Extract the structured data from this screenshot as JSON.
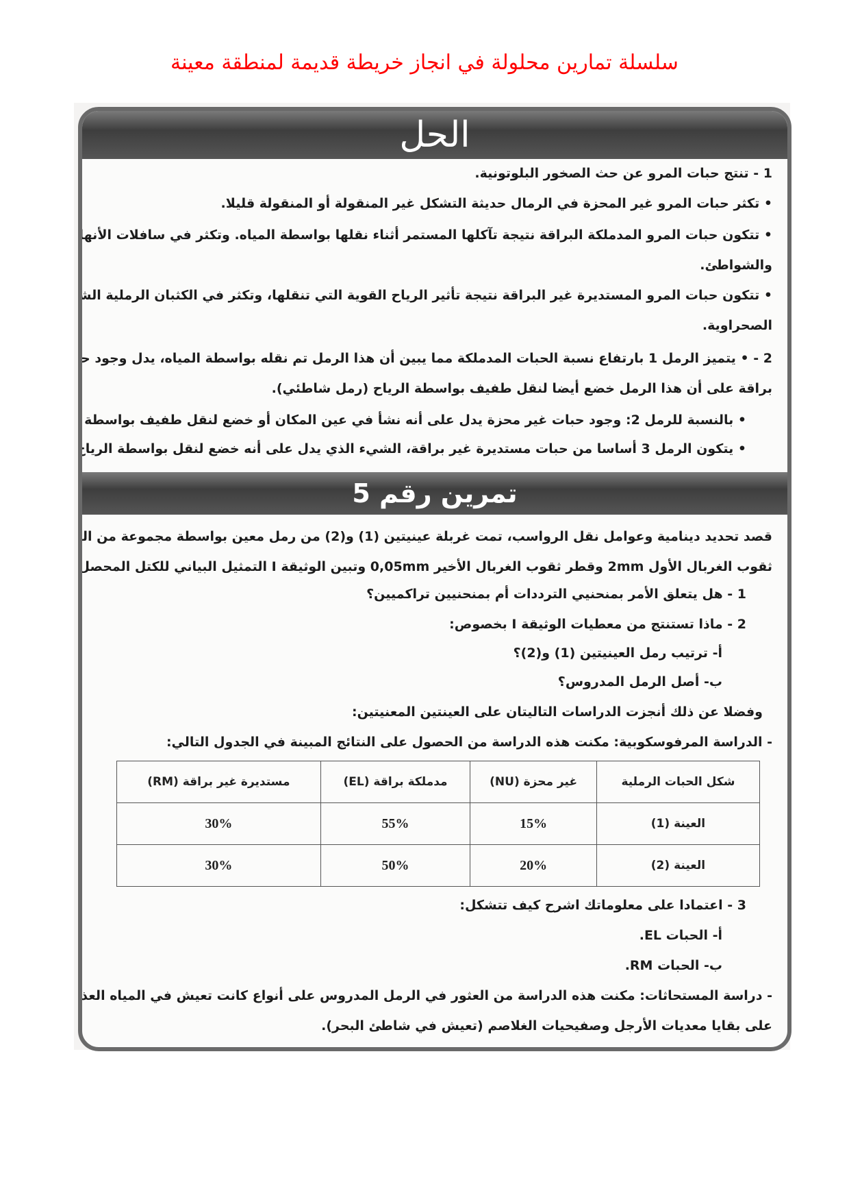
{
  "page_title": "سلسلة تمارين محلولة في انجاز خريطة قديمة لمنطقة معينة",
  "solution": {
    "header": "الحل",
    "lines": [
      "1 - تنتج حبات المرو عن حث الصخور البلوتونية.",
      "• تكثر حبات المرو غير المحزة في الرمال حديثة التشكل غير المنقولة أو المنقولة قليلا.",
      "• تتكون حبات المرو المدملكة البراقة نتيجة تآكلها المستمر أثناء نقلها بواسطة المياه. وتكثر في سافلات الأنهار والوديان",
      "والشواطئ.",
      "• تتكون حبات المرو المستديرة غير البراقة نتيجة تأثير الرياح القوية التي تنقلها، وتكثر في الكثبان الرملية الشاطئية أو",
      "الصحراوية.",
      "2 - • يتميز الرمل 1 بارتفاع نسبة الحبات المدملكة مما يبين أن هذا الرمل تم نقله بواسطة المياه، يدل وجود حبات مستديرة غير",
      "براقة على أن هذا الرمل خضع أيضا لنقل طفيف بواسطة الرياح (رمل شاطئي).",
      "• بالنسبة للرمل 2: وجود حبات غير محزة يدل على أنه نشأ في عين المكان أو خضع لنقل طفيف بواسطة المياه (رمل حديث).",
      "• يتكون الرمل 3 أساسا من حبات مستديرة غير براقة، الشيء الذي يدل على أنه خضع لنقل بواسطة الرياح (رمل كثباني)."
    ]
  },
  "exercise": {
    "header": "تمرين رقم 5",
    "lines": [
      "قصد تحديد دينامية وعوامل نقل الرواسب، تمت غربلة عينيتين (1) و(2) من رمل معين بواسطة مجموعة من الغرابيل، يبلغ قطر",
      "ثقوب الغربال الأول 2mm وقطر ثقوب الغربال الأخير 0,05mm وتبين الوثيقة I التمثيل البياني للكتل المحصل عليها في كل غربال.",
      "1 - هل يتعلق الأمر بمنحنيي الترددات أم بمنحنيين تراكميين؟",
      "2 - ماذا تستنتج من معطيات الوثيقة I بخصوص:",
      "أ- ترتيب رمل العينيتين (1) و(2)؟",
      "ب- أصل الرمل المدروس؟",
      "وفضلا عن ذلك أنجزت الدراسات التاليتان على العينتين المعنيتين:",
      "- الدراسة المرفوسكوبية: مكنت هذه الدراسة من الحصول على النتائج المبينة في الجدول التالي:"
    ],
    "table": {
      "headers": [
        "شكل الحبات الرملية",
        "غير محزة (NU)",
        "مدملكة براقة (EL)",
        "مستديرة غير براقة (RM)"
      ],
      "rows": [
        [
          "العينة (1)",
          "15%",
          "55%",
          "30%"
        ],
        [
          "العينة (2)",
          "20%",
          "50%",
          "30%"
        ]
      ]
    },
    "after": [
      "3 - اعتمادا على معلوماتك اشرح كيف تتشكل:",
      "أ- الحبات EL.",
      "ب- الحبات RM.",
      "- دراسة المستحاثات: مكنت هذه الدراسة من العثور في الرمل المدروس على أنواع كانت تعيش في المياه العذبة أو في اليابسة، كما عثر",
      "على بقايا معديات الأرجل وصفيحيات الغلاصم (تعيش في شاطئ البحر)."
    ]
  }
}
